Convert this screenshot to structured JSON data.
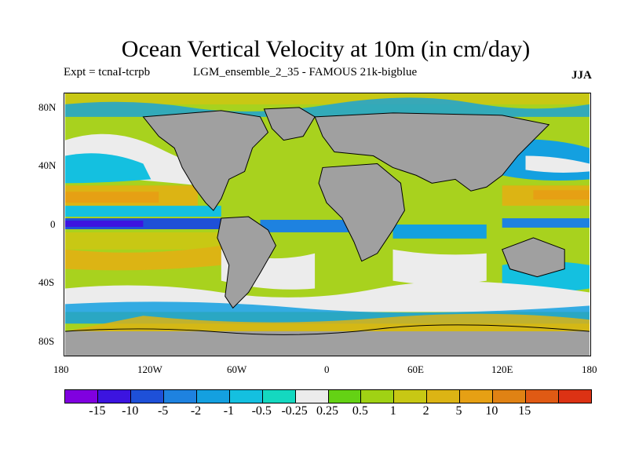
{
  "title": "Ocean Vertical Velocity at 10m (in cm/day)",
  "subtitle_left": "Expt = tcnaI-tcrpb",
  "subtitle_mid": "LGM_ensemble_2_35 - FAMOUS 21k-bigblue",
  "season": "JJA",
  "map": {
    "land_color": "#a0a0a0",
    "lat_labels": [
      "80N",
      "40N",
      "0",
      "40S",
      "80S"
    ],
    "lon_labels": [
      "180",
      "120W",
      "60W",
      "0",
      "60E",
      "120E",
      "180"
    ]
  },
  "colorbar": {
    "colors": [
      "#8000e0",
      "#3c14e0",
      "#1e50d8",
      "#1e82e0",
      "#14a0e0",
      "#14c0e0",
      "#14d8c0",
      "#ececec",
      "#64d214",
      "#a0d214",
      "#c8c814",
      "#dcb414",
      "#e6a014",
      "#e08214",
      "#e05a14",
      "#dc3214"
    ],
    "labels": [
      "-15",
      "-10",
      "-5",
      "-2",
      "-1",
      "-0.5",
      "-0.25",
      "0.25",
      "0.5",
      "1",
      "2",
      "5",
      "10",
      "15"
    ]
  }
}
